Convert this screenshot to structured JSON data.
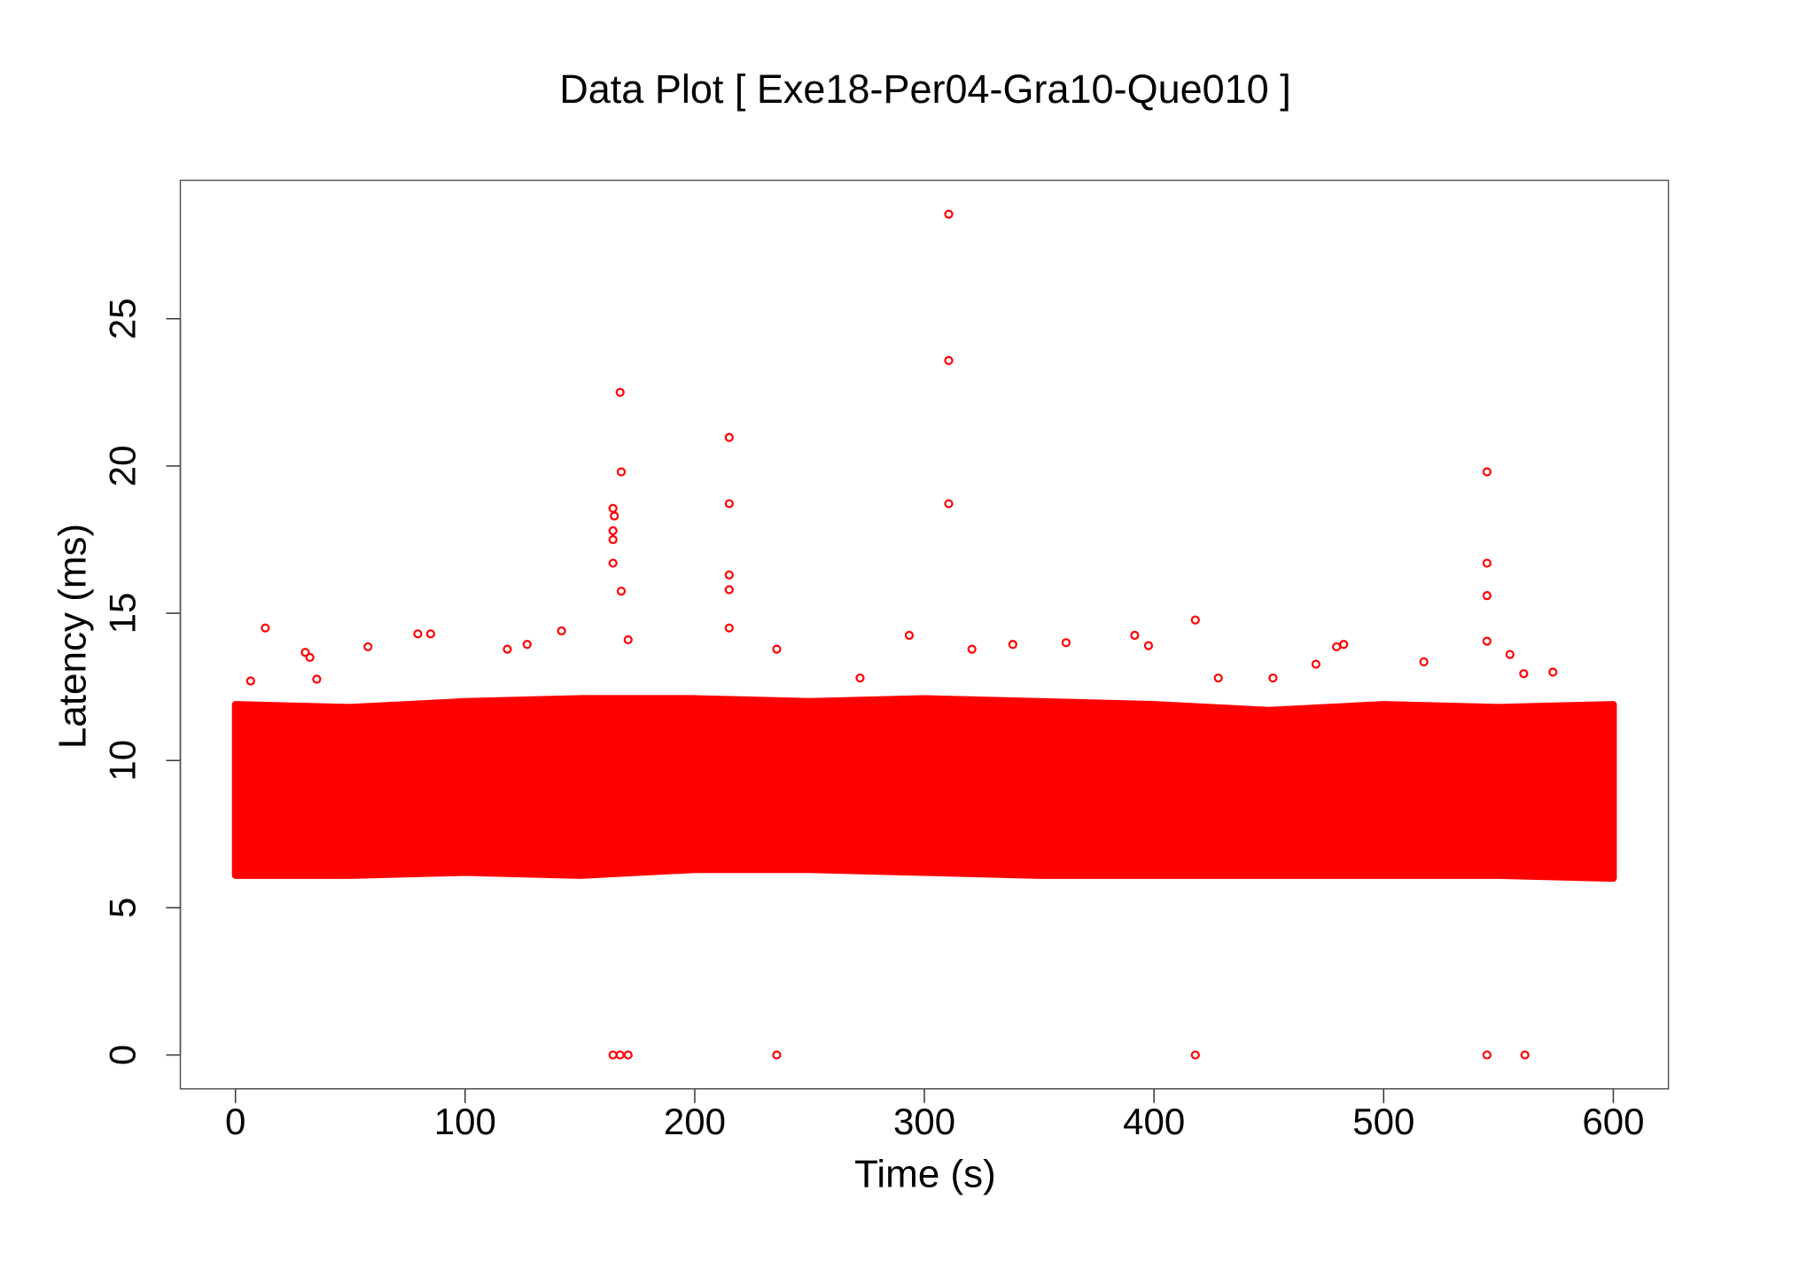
{
  "chart_data": {
    "type": "scatter",
    "title": "Data Plot [ Exe18-Per04-Gra10-Que010 ]",
    "x_label": "Time (s)",
    "y_label": "Latency (ms)",
    "xlim": [
      -24,
      624
    ],
    "ylim": [
      -1.15,
      29.7
    ],
    "xticks": [
      0,
      100,
      200,
      300,
      400,
      500,
      600
    ],
    "yticks": [
      0,
      5,
      10,
      15,
      20,
      25
    ],
    "series": [
      {
        "color": "#ff0000",
        "x": [
          310.6,
          310.6,
          310.6,
          167.5,
          168,
          215,
          215,
          215,
          215,
          215,
          545,
          545,
          545,
          545,
          164.4,
          165,
          164.4,
          164.4,
          164.4,
          168,
          418,
          13,
          79.4,
          85,
          142,
          293.4,
          391.6,
          30.4,
          32.4,
          57.7,
          127,
          118.4,
          361.7,
          338.5,
          482.6,
          479.5,
          397.6,
          171,
          235.7,
          517.5,
          555,
          6.6,
          35.4,
          272,
          451.8,
          573.7,
          561,
          320.7,
          428,
          470.5,
          164.4,
          167.5,
          171,
          235.7,
          418,
          545,
          561.5
        ],
        "values": [
          28.55,
          23.58,
          18.72,
          22.5,
          19.8,
          20.97,
          18.72,
          16.3,
          15.8,
          14.5,
          19.8,
          16.7,
          15.6,
          14.05,
          18.56,
          18.3,
          17.8,
          17.5,
          16.7,
          15.75,
          14.77,
          14.5,
          14.3,
          14.3,
          14.4,
          14.25,
          14.25,
          13.67,
          13.5,
          13.86,
          13.94,
          13.78,
          14.0,
          13.94,
          13.94,
          13.86,
          13.9,
          14.1,
          13.78,
          13.35,
          13.6,
          12.7,
          12.76,
          12.8,
          12.8,
          13.0,
          12.95,
          13.78,
          12.8,
          13.27,
          0,
          0,
          0,
          0,
          0,
          0,
          0
        ]
      }
    ],
    "band": {
      "color": "#ff0000",
      "x": [
        0,
        50,
        100,
        150,
        200,
        250,
        300,
        350,
        400,
        450,
        500,
        550,
        600
      ],
      "high": [
        11.9,
        11.8,
        12.0,
        12.1,
        12.1,
        12.0,
        12.1,
        12.0,
        11.9,
        11.7,
        11.9,
        11.8,
        11.9
      ],
      "low": [
        6.1,
        6.1,
        6.2,
        6.1,
        6.3,
        6.3,
        6.2,
        6.1,
        6.1,
        6.1,
        6.1,
        6.1,
        6.0
      ]
    }
  }
}
